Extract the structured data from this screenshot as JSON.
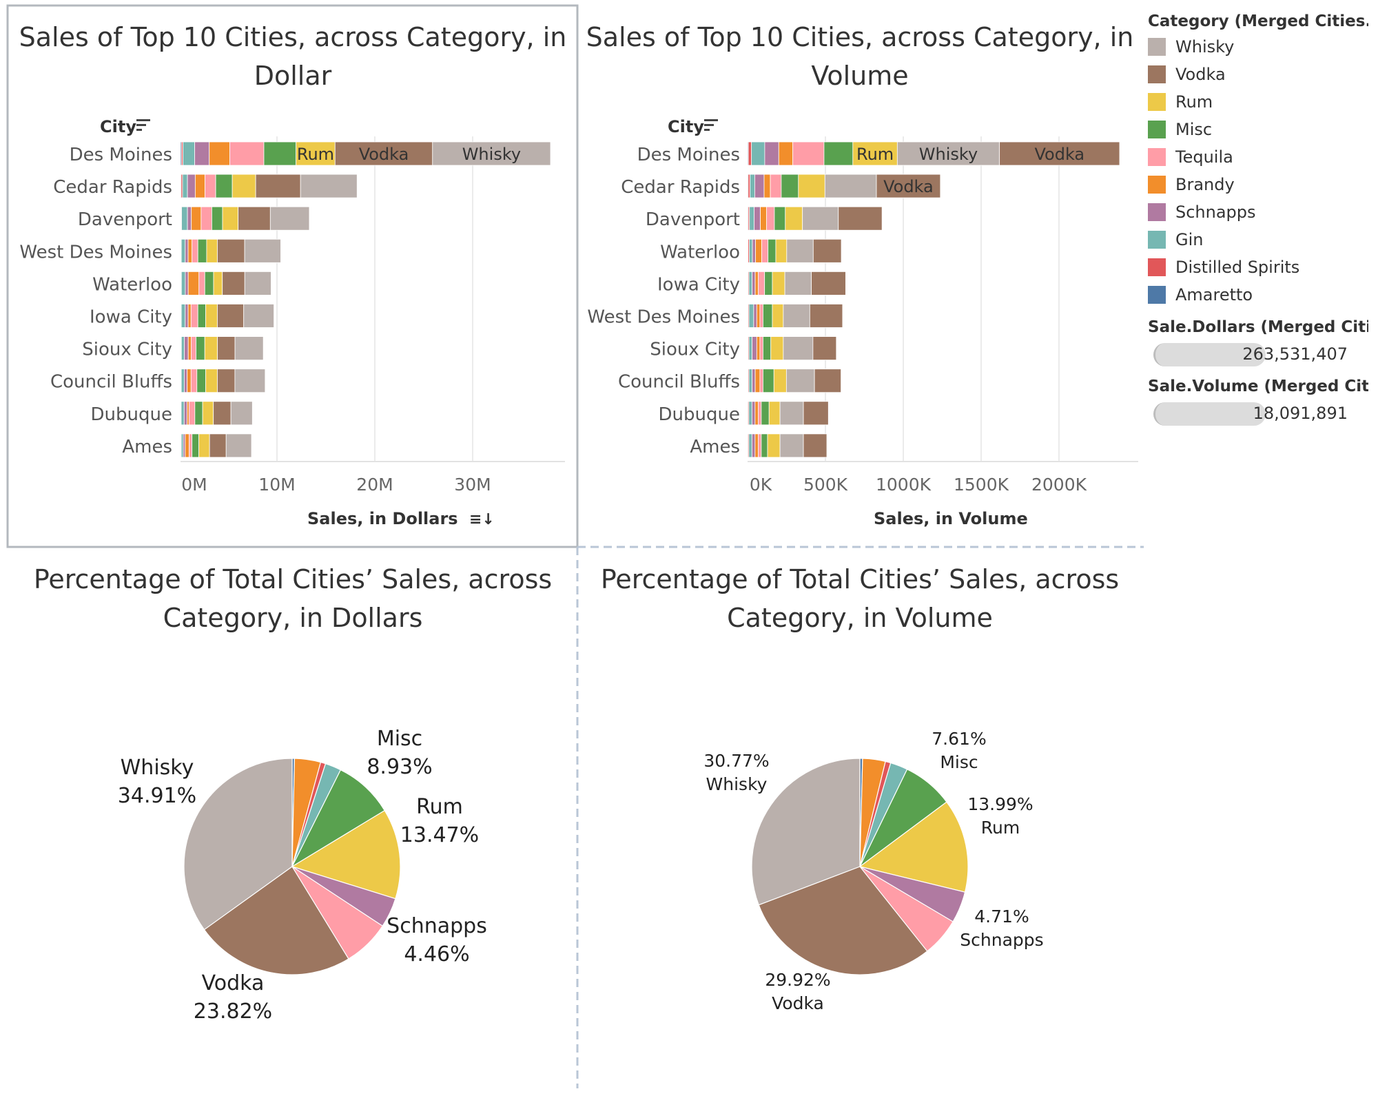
{
  "categories": [
    "Amaretto",
    "Distilled Spirits",
    "Gin",
    "Schnapps",
    "Brandy",
    "Tequila",
    "Misc",
    "Rum",
    "Vodka",
    "Whisky"
  ],
  "colors": {
    "Whisky": "#bab0ac",
    "Vodka": "#9c7660",
    "Rum": "#edc948",
    "Misc": "#59a14f",
    "Tequila": "#ff9da7",
    "Brandy": "#f28e2b",
    "Schnapps": "#b07aa1",
    "Gin": "#76b7b2",
    "Distilled Spirits": "#e15759",
    "Amaretto": "#4e79a7"
  },
  "titles": {
    "bar_dollars": [
      "Sales of Top 10 Cities, across Category, in",
      "Dollar"
    ],
    "bar_volume": [
      "Sales of Top 10 Cities, across Category, in",
      "Volume"
    ],
    "pie_dollars": [
      "Percentage of Total Cities’ Sales, across",
      "Category, in Dollars"
    ],
    "pie_volume": [
      "Percentage of Total Cities’ Sales, across",
      "Category, in Volume"
    ]
  },
  "legend": {
    "title": "Category (Merged Cities...",
    "items": [
      "Whisky",
      "Vodka",
      "Rum",
      "Misc",
      "Tequila",
      "Brandy",
      "Schnapps",
      "Gin",
      "Distilled Spirits",
      "Amaretto"
    ],
    "sum_dollars_title": "Sale.Dollars (Merged Citi..",
    "sum_dollars_value": "263,531,407",
    "sum_volume_title": "Sale.Volume (Merged Citi..",
    "sum_volume_value": "18,091,891"
  },
  "chart_data": [
    {
      "type": "bar",
      "orientation": "horizontal-stacked",
      "title": "Sales of Top 10 Cities, across Category, in Dollar",
      "ylabel": "City",
      "xlabel": "Sales, in Dollars",
      "xticks": [
        "0M",
        "10M",
        "20M",
        "30M"
      ],
      "xlim": [
        0,
        39000000
      ],
      "categories": [
        "Des Moines",
        "Cedar Rapids",
        "Davenport",
        "West Des Moines",
        "Waterloo",
        "Iowa City",
        "Sioux City",
        "Council Bluffs",
        "Dubuque",
        "Ames"
      ],
      "series": [
        {
          "name": "Amaretto",
          "values": [
            100000,
            60000,
            50000,
            40000,
            40000,
            40000,
            40000,
            40000,
            30000,
            30000
          ]
        },
        {
          "name": "Distilled Spirits",
          "values": [
            150000,
            150000,
            60000,
            40000,
            50000,
            40000,
            50000,
            40000,
            40000,
            50000
          ]
        },
        {
          "name": "Gin",
          "values": [
            1200000,
            500000,
            600000,
            400000,
            400000,
            400000,
            300000,
            300000,
            300000,
            200000
          ]
        },
        {
          "name": "Schnapps",
          "values": [
            1500000,
            800000,
            400000,
            300000,
            300000,
            300000,
            400000,
            300000,
            300000,
            200000
          ]
        },
        {
          "name": "Brandy",
          "values": [
            2100000,
            1000000,
            1000000,
            400000,
            1100000,
            300000,
            300000,
            400000,
            200000,
            400000
          ]
        },
        {
          "name": "Tequila",
          "values": [
            3500000,
            1100000,
            1100000,
            600000,
            600000,
            700000,
            500000,
            600000,
            600000,
            300000
          ]
        },
        {
          "name": "Misc",
          "values": [
            3300000,
            1700000,
            1100000,
            900000,
            900000,
            800000,
            900000,
            900000,
            800000,
            700000
          ]
        },
        {
          "name": "Rum",
          "values": [
            4000000,
            2400000,
            1600000,
            1100000,
            900000,
            1200000,
            1300000,
            1200000,
            1100000,
            1100000
          ]
        },
        {
          "name": "Vodka",
          "values": [
            10000000,
            4600000,
            3300000,
            2800000,
            2300000,
            2700000,
            1800000,
            1800000,
            1800000,
            1700000
          ]
        },
        {
          "name": "Whisky",
          "values": [
            12100000,
            5800000,
            4000000,
            3700000,
            2700000,
            3100000,
            2900000,
            3100000,
            2200000,
            2600000
          ]
        }
      ],
      "segment_labels": {
        "Des Moines": {
          "Rum": "Rum",
          "Vodka": "Vodka",
          "Whisky": "Whisky"
        }
      }
    },
    {
      "type": "bar",
      "orientation": "horizontal-stacked",
      "title": "Sales of Top 10 Cities, across Category, in Volume",
      "ylabel": "City",
      "xlabel": "Sales, in Volume",
      "xticks": [
        "0K",
        "500K",
        "1000K",
        "1500K",
        "2000K"
      ],
      "xlim": [
        0,
        2500000
      ],
      "categories": [
        "Des Moines",
        "Cedar Rapids",
        "Davenport",
        "Waterloo",
        "Iowa City",
        "West Des Moines",
        "Sioux City",
        "Council Bluffs",
        "Dubuque",
        "Ames"
      ],
      "series": [
        {
          "name": "Amaretto",
          "values": [
            5000,
            4000,
            4000,
            3000,
            3000,
            3000,
            3000,
            3000,
            2000,
            2000
          ]
        },
        {
          "name": "Distilled Spirits",
          "values": [
            20000,
            12000,
            8000,
            8000,
            6000,
            6000,
            6000,
            6000,
            6000,
            6000
          ]
        },
        {
          "name": "Gin",
          "values": [
            85000,
            30000,
            30000,
            20000,
            20000,
            30000,
            20000,
            20000,
            20000,
            20000
          ]
        },
        {
          "name": "Schnapps",
          "values": [
            90000,
            60000,
            40000,
            20000,
            20000,
            20000,
            30000,
            20000,
            20000,
            20000
          ]
        },
        {
          "name": "Brandy",
          "values": [
            90000,
            40000,
            40000,
            40000,
            20000,
            20000,
            20000,
            30000,
            20000,
            20000
          ]
        },
        {
          "name": "Tequila",
          "values": [
            200000,
            70000,
            50000,
            40000,
            40000,
            20000,
            20000,
            20000,
            20000,
            20000
          ]
        },
        {
          "name": "Misc",
          "values": [
            185000,
            110000,
            70000,
            50000,
            50000,
            60000,
            50000,
            70000,
            50000,
            40000
          ]
        },
        {
          "name": "Rum",
          "values": [
            285000,
            170000,
            110000,
            70000,
            80000,
            70000,
            80000,
            80000,
            70000,
            80000
          ]
        },
        {
          "name": "Whisky",
          "values": [
            655000,
            330000,
            230000,
            170000,
            170000,
            170000,
            190000,
            180000,
            150000,
            150000
          ]
        },
        {
          "name": "Vodka",
          "values": [
            770000,
            410000,
            280000,
            180000,
            220000,
            210000,
            150000,
            170000,
            160000,
            150000
          ]
        }
      ],
      "segment_labels": {
        "Des Moines": {
          "Rum": "Rum",
          "Whisky": "Whisky",
          "Vodka": "Vodka"
        },
        "Cedar Rapids": {
          "Vodka": "Vodka"
        }
      }
    },
    {
      "type": "pie",
      "title": "Percentage of Total Cities’ Sales, across Category, in Dollars",
      "slices": [
        {
          "name": "Amaretto",
          "value": 0.35
        },
        {
          "name": "Brandy",
          "value": 3.9
        },
        {
          "name": "Distilled Spirits",
          "value": 0.75
        },
        {
          "name": "Gin",
          "value": 2.4
        },
        {
          "name": "Misc",
          "value": 8.93
        },
        {
          "name": "Rum",
          "value": 13.47
        },
        {
          "name": "Schnapps",
          "value": 4.46
        },
        {
          "name": "Tequila",
          "value": 7.01
        },
        {
          "name": "Vodka",
          "value": 23.82
        },
        {
          "name": "Whisky",
          "value": 34.91
        }
      ],
      "labels": [
        {
          "name": "Whisky",
          "value": "34.91%",
          "order": "name-first"
        },
        {
          "name": "Misc",
          "value": "8.93%",
          "order": "name-first"
        },
        {
          "name": "Rum",
          "value": "13.47%",
          "order": "name-first"
        },
        {
          "name": "Schnapps",
          "value": "4.46%",
          "order": "name-first"
        },
        {
          "name": "Vodka",
          "value": "23.82%",
          "order": "name-first"
        }
      ]
    },
    {
      "type": "pie",
      "title": "Percentage of Total Cities’ Sales, across Category, in Volume",
      "slices": [
        {
          "name": "Amaretto",
          "value": 0.4
        },
        {
          "name": "Brandy",
          "value": 3.4
        },
        {
          "name": "Distilled Spirits",
          "value": 0.8
        },
        {
          "name": "Gin",
          "value": 2.6
        },
        {
          "name": "Misc",
          "value": 7.61
        },
        {
          "name": "Rum",
          "value": 13.99
        },
        {
          "name": "Schnapps",
          "value": 4.71
        },
        {
          "name": "Tequila",
          "value": 5.79
        },
        {
          "name": "Vodka",
          "value": 29.92
        },
        {
          "name": "Whisky",
          "value": 30.77
        }
      ],
      "labels": [
        {
          "name": "Whisky",
          "value": "30.77%",
          "order": "value-first"
        },
        {
          "name": "Misc",
          "value": "7.61%",
          "order": "value-first"
        },
        {
          "name": "Rum",
          "value": "13.99%",
          "order": "value-first"
        },
        {
          "name": "Schnapps",
          "value": "4.71%",
          "order": "value-first"
        },
        {
          "name": "Vodka",
          "value": "29.92%",
          "order": "value-first"
        }
      ]
    }
  ]
}
